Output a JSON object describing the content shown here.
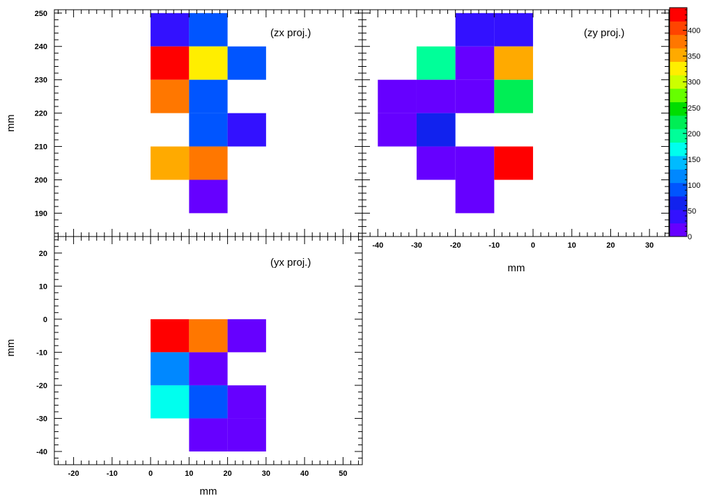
{
  "chart_data": [
    {
      "type": "heatmap",
      "panel_label": "(zx proj.)",
      "xlabel": "",
      "ylabel": "mm",
      "xlim": [
        -25,
        55
      ],
      "ylim": [
        183,
        251
      ],
      "x_ticks": [
        -20,
        -10,
        0,
        10,
        20,
        30,
        40,
        50
      ],
      "y_ticks": [
        190,
        200,
        210,
        220,
        230,
        240,
        250
      ],
      "show_x_tick_labels": false,
      "cells": [
        {
          "x0": 0,
          "x1": 10,
          "y0": 240,
          "y1": 250,
          "value": 40
        },
        {
          "x0": 10,
          "x1": 20,
          "y0": 240,
          "y1": 250,
          "value": 85
        },
        {
          "x0": 0,
          "x1": 10,
          "y0": 230,
          "y1": 240,
          "value": 425
        },
        {
          "x0": 10,
          "x1": 20,
          "y0": 230,
          "y1": 240,
          "value": 315
        },
        {
          "x0": 20,
          "x1": 30,
          "y0": 230,
          "y1": 240,
          "value": 85
        },
        {
          "x0": 0,
          "x1": 10,
          "y0": 220,
          "y1": 230,
          "value": 375
        },
        {
          "x0": 10,
          "x1": 20,
          "y0": 220,
          "y1": 230,
          "value": 85
        },
        {
          "x0": 10,
          "x1": 20,
          "y0": 210,
          "y1": 220,
          "value": 85
        },
        {
          "x0": 20,
          "x1": 30,
          "y0": 210,
          "y1": 220,
          "value": 40
        },
        {
          "x0": 0,
          "x1": 10,
          "y0": 200,
          "y1": 210,
          "value": 340
        },
        {
          "x0": 10,
          "x1": 20,
          "y0": 200,
          "y1": 210,
          "value": 375
        },
        {
          "x0": 10,
          "x1": 20,
          "y0": 190,
          "y1": 200,
          "value": 10
        }
      ]
    },
    {
      "type": "heatmap",
      "panel_label": "(zy proj.)",
      "xlabel": "mm",
      "ylabel": "",
      "xlim": [
        -44,
        35
      ],
      "ylim": [
        183,
        251
      ],
      "x_ticks": [
        -40,
        -30,
        -20,
        -10,
        0,
        10,
        20,
        30
      ],
      "y_ticks": [
        190,
        200,
        210,
        220,
        230,
        240,
        250
      ],
      "show_y_tick_labels": false,
      "cells": [
        {
          "x0": -20,
          "x1": -10,
          "y0": 240,
          "y1": 250,
          "value": 40
        },
        {
          "x0": -10,
          "x1": 0,
          "y0": 240,
          "y1": 250,
          "value": 40
        },
        {
          "x0": -30,
          "x1": -20,
          "y0": 230,
          "y1": 240,
          "value": 200
        },
        {
          "x0": -20,
          "x1": -10,
          "y0": 230,
          "y1": 240,
          "value": 25
        },
        {
          "x0": -10,
          "x1": 0,
          "y0": 230,
          "y1": 240,
          "value": 360
        },
        {
          "x0": -40,
          "x1": -30,
          "y0": 220,
          "y1": 230,
          "value": 15
        },
        {
          "x0": -30,
          "x1": -20,
          "y0": 220,
          "y1": 230,
          "value": 25
        },
        {
          "x0": -20,
          "x1": -10,
          "y0": 220,
          "y1": 230,
          "value": 25
        },
        {
          "x0": -10,
          "x1": 0,
          "y0": 220,
          "y1": 230,
          "value": 235
        },
        {
          "x0": -40,
          "x1": -30,
          "y0": 210,
          "y1": 220,
          "value": 25
        },
        {
          "x0": -30,
          "x1": -20,
          "y0": 210,
          "y1": 220,
          "value": 60
        },
        {
          "x0": -30,
          "x1": -20,
          "y0": 200,
          "y1": 210,
          "value": 25
        },
        {
          "x0": -20,
          "x1": -10,
          "y0": 200,
          "y1": 210,
          "value": 25
        },
        {
          "x0": -10,
          "x1": 0,
          "y0": 200,
          "y1": 210,
          "value": 425
        },
        {
          "x0": -20,
          "x1": -10,
          "y0": 190,
          "y1": 200,
          "value": 10
        }
      ]
    },
    {
      "type": "heatmap",
      "panel_label": "(yx proj.)",
      "xlabel": "mm",
      "ylabel": "mm",
      "xlim": [
        -25,
        55
      ],
      "ylim": [
        -44,
        25
      ],
      "x_ticks": [
        -20,
        -10,
        0,
        10,
        20,
        30,
        40,
        50
      ],
      "y_ticks": [
        -40,
        -30,
        -20,
        -10,
        0,
        10,
        20
      ],
      "cells": [
        {
          "x0": 0,
          "x1": 10,
          "y0": -10,
          "y1": 0,
          "value": 425
        },
        {
          "x0": 10,
          "x1": 20,
          "y0": -10,
          "y1": 0,
          "value": 375
        },
        {
          "x0": 20,
          "x1": 30,
          "y0": -10,
          "y1": 0,
          "value": 25
        },
        {
          "x0": 0,
          "x1": 10,
          "y0": -20,
          "y1": -10,
          "value": 110
        },
        {
          "x0": 10,
          "x1": 20,
          "y0": -20,
          "y1": -10,
          "value": 25
        },
        {
          "x0": 0,
          "x1": 10,
          "y0": -30,
          "y1": -20,
          "value": 160
        },
        {
          "x0": 10,
          "x1": 20,
          "y0": -30,
          "y1": -20,
          "value": 85
        },
        {
          "x0": 20,
          "x1": 30,
          "y0": -30,
          "y1": -20,
          "value": 10
        },
        {
          "x0": 10,
          "x1": 20,
          "y0": -40,
          "y1": -30,
          "value": 10
        },
        {
          "x0": 20,
          "x1": 30,
          "y0": -40,
          "y1": -30,
          "value": 10
        }
      ]
    }
  ],
  "colorbar": {
    "min": 0,
    "max": 444,
    "ticks": [
      0,
      50,
      100,
      150,
      200,
      250,
      300,
      350,
      400
    ],
    "colors": [
      "#6600ff",
      "#3311ff",
      "#1122ee",
      "#0055ff",
      "#0088ff",
      "#00bbff",
      "#00ffee",
      "#00ff99",
      "#00ee55",
      "#00dd00",
      "#66ff00",
      "#ccff00",
      "#ffee00",
      "#ffaa00",
      "#ff7700",
      "#ff4400",
      "#ff0000"
    ]
  }
}
